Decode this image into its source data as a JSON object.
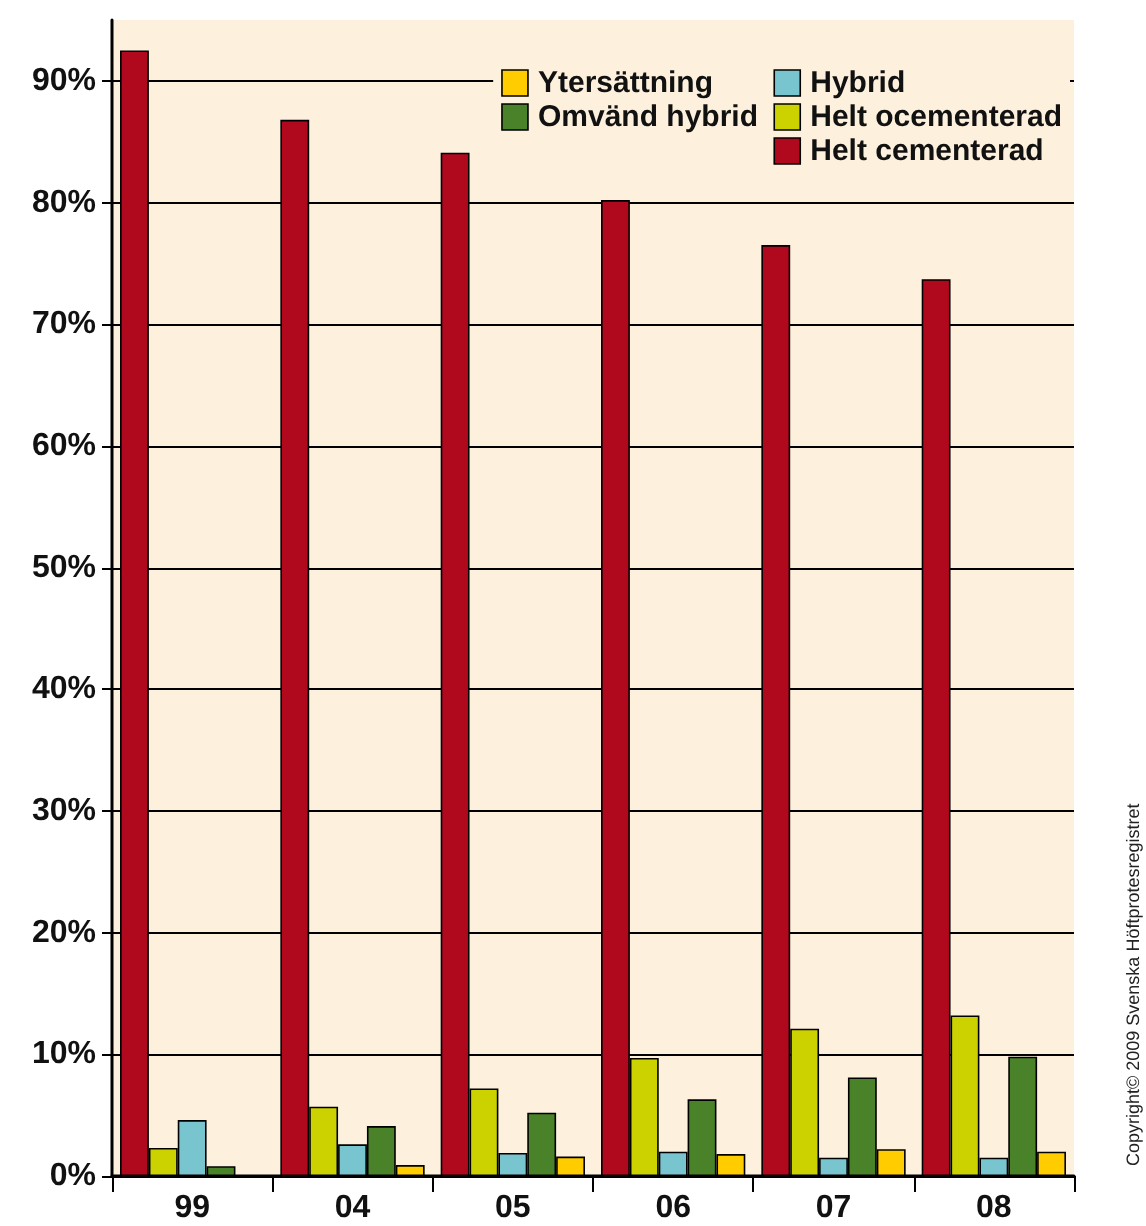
{
  "chart_data": {
    "type": "bar",
    "categories": [
      "99",
      "04",
      "05",
      "06",
      "07",
      "08"
    ],
    "series": [
      {
        "name": "Helt cementerad",
        "color": "#b0091e",
        "values": [
          92.5,
          86.8,
          84.1,
          80.2,
          76.5,
          73.7
        ]
      },
      {
        "name": "Helt ocementerad",
        "color": "#ccd200",
        "values": [
          2.3,
          5.7,
          7.2,
          9.7,
          12.1,
          13.2
        ]
      },
      {
        "name": "Hybrid",
        "color": "#79c5cf",
        "values": [
          4.6,
          2.6,
          1.9,
          2.0,
          1.5,
          1.5
        ]
      },
      {
        "name": "Omvänd hybrid",
        "color": "#4a8229",
        "values": [
          0.8,
          4.1,
          5.2,
          6.3,
          8.1,
          9.8
        ]
      },
      {
        "name": "Ytersättning",
        "color": "#ffcc00",
        "values": [
          null,
          0.9,
          1.6,
          1.8,
          2.2,
          2.0
        ]
      }
    ],
    "ylim": [
      0,
      95
    ],
    "yticks": [
      {
        "value": 0,
        "label": "0%"
      },
      {
        "value": 10,
        "label": "10%"
      },
      {
        "value": 20,
        "label": "20%"
      },
      {
        "value": 30,
        "label": "30%"
      },
      {
        "value": 40,
        "label": "40%"
      },
      {
        "value": 50,
        "label": "50%"
      },
      {
        "value": 60,
        "label": "60%"
      },
      {
        "value": 70,
        "label": "70%"
      },
      {
        "value": 80,
        "label": "80%"
      },
      {
        "value": 90,
        "label": "90%"
      }
    ],
    "grid": "y",
    "legend": "top right",
    "annotations": [
      "Copyright© 2009 Svenska Höftprotesregistret"
    ]
  }
}
